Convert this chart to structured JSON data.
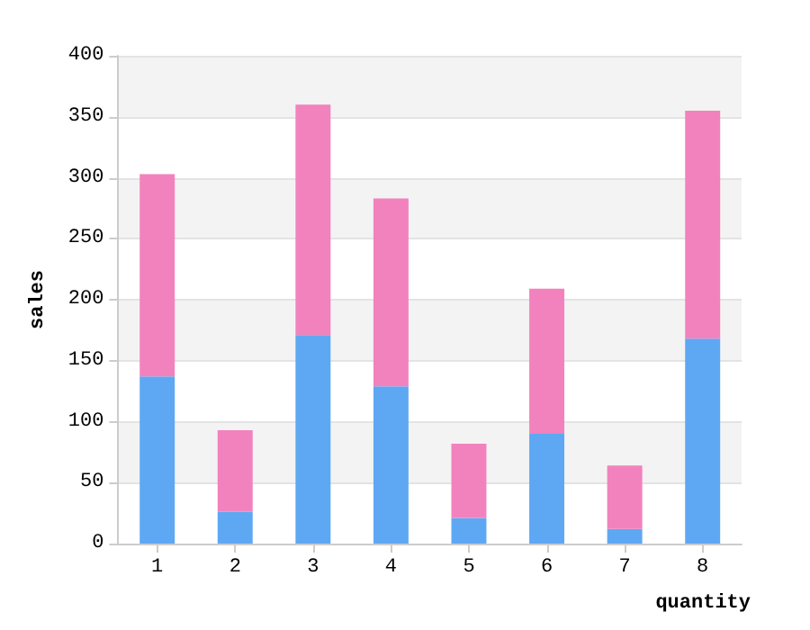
{
  "chart_data": {
    "type": "bar",
    "xlabel": "quantity",
    "ylabel": "sales",
    "categories": [
      "1",
      "2",
      "3",
      "4",
      "5",
      "6",
      "7",
      "8"
    ],
    "series": [
      {
        "color": "#5ea8f3",
        "values": [
          137,
          26,
          171,
          129,
          21,
          90,
          12,
          168
        ]
      },
      {
        "color": "#f282bd",
        "values": [
          166,
          67,
          189,
          154,
          61,
          119,
          52,
          187
        ]
      }
    ],
    "stacked": true,
    "ylim": [
      0,
      400
    ],
    "yticks": [
      0,
      50,
      100,
      150,
      200,
      250,
      300,
      350,
      400
    ],
    "grid": "y"
  }
}
